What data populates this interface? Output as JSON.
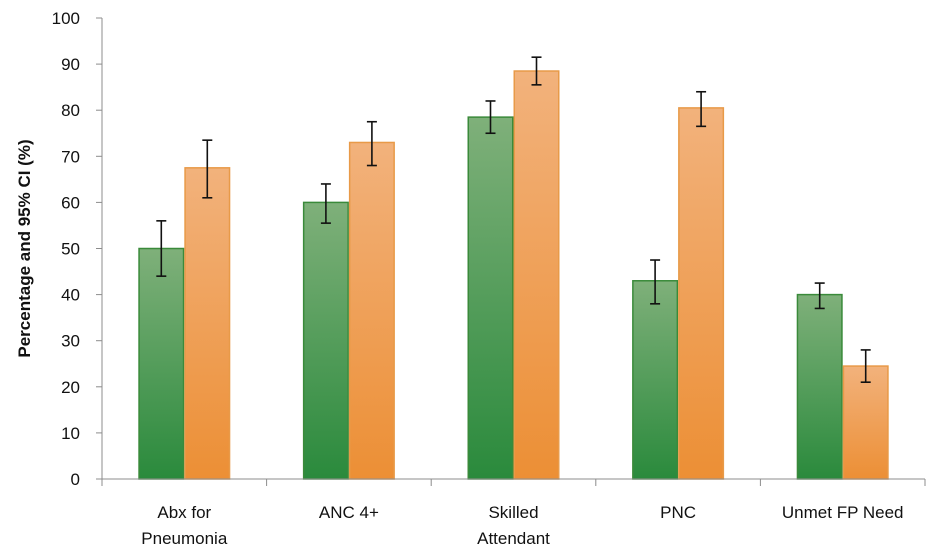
{
  "chart_data": {
    "type": "bar",
    "title": "",
    "xlabel": "",
    "ylabel": "Percentage and 95% CI (%)",
    "ylim": [
      0,
      100
    ],
    "yticks": [
      "0",
      "10",
      "20",
      "30",
      "40",
      "50",
      "60",
      "70",
      "80",
      "90",
      "100"
    ],
    "categories": [
      [
        "Abx for",
        "Pneumonia"
      ],
      [
        "ANC 4+"
      ],
      [
        "Skilled",
        "Attendant"
      ],
      [
        "PNC"
      ],
      [
        "Unmet FP Need"
      ]
    ],
    "series": [
      {
        "values": [
          50,
          60,
          78.5,
          43,
          40
        ],
        "ci_low": [
          44,
          55.5,
          75,
          38,
          37
        ],
        "ci_high": [
          56,
          64,
          82,
          47.5,
          42.5
        ],
        "color_top": "#7fb07a",
        "color_bottom": "#2a8a3c",
        "border": "#3a8a3a"
      },
      {
        "values": [
          67.5,
          73,
          88.5,
          80.5,
          24.5
        ],
        "ci_low": [
          61,
          68,
          85.5,
          76.5,
          21
        ],
        "ci_high": [
          73.5,
          77.5,
          91.5,
          84,
          28
        ],
        "color_top": "#f2b27c",
        "color_bottom": "#ec8f35",
        "border": "#e89a48"
      }
    ],
    "grid": false,
    "legend": "none"
  }
}
